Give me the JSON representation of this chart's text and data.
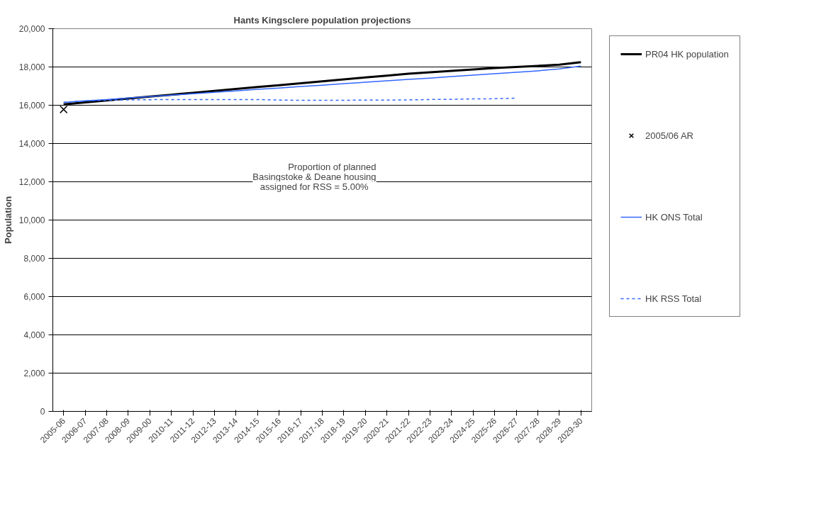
{
  "chart_data": {
    "type": "line",
    "title": "Hants Kingsclere population projections",
    "ylabel": "Population",
    "categories": [
      "2005-06",
      "2006-07",
      "2007-08",
      "2008-09",
      "2009-00",
      "2010-11",
      "2011-12",
      "2012-13",
      "2013-14",
      "2014-15",
      "2015-16",
      "2016-17",
      "2017-18",
      "2018-19",
      "2019-20",
      "2020-21",
      "2021-22",
      "2022-23",
      "2023-24",
      "2024-25",
      "2025-26",
      "2026-27",
      "2027-28",
      "2028-29",
      "2029-30"
    ],
    "series": [
      {
        "name": "PR04 HK population",
        "color": "#000000",
        "line_style": "solid",
        "values": [
          16050,
          16150,
          16250,
          16350,
          16450,
          16550,
          16650,
          16750,
          16850,
          16950,
          17050,
          17150,
          17250,
          17350,
          17450,
          17550,
          17650,
          17720,
          17800,
          17870,
          17940,
          18000,
          18060,
          18120,
          18250
        ]
      },
      {
        "name": "2005/06 AR",
        "type": "scatter",
        "marker": "cross",
        "color": "#000000",
        "values": [
          15780,
          null,
          null,
          null,
          null,
          null,
          null,
          null,
          null,
          null,
          null,
          null,
          null,
          null,
          null,
          null,
          null,
          null,
          null,
          null,
          null,
          null,
          null,
          null,
          null
        ]
      },
      {
        "name": "HK ONS Total",
        "color": "#3366ff",
        "line_style": "solid",
        "values": [
          16150,
          16230,
          16300,
          16380,
          16450,
          16530,
          16600,
          16680,
          16750,
          16830,
          16900,
          16980,
          17050,
          17130,
          17200,
          17280,
          17350,
          17420,
          17500,
          17570,
          17650,
          17720,
          17800,
          17900,
          18050
        ]
      },
      {
        "name": "HK RSS Total",
        "color": "#3366ff",
        "line_style": "dashed",
        "values": [
          16150,
          16230,
          16260,
          16280,
          16290,
          16300,
          16300,
          16300,
          16300,
          16300,
          16270,
          16260,
          16260,
          16260,
          16270,
          16270,
          16280,
          16300,
          16310,
          16330,
          16340,
          16370,
          null,
          null,
          null
        ]
      }
    ],
    "ylim": [
      0,
      20000
    ],
    "yticks": [
      {
        "value": 0,
        "label": "0"
      },
      {
        "value": 2000,
        "label": "2,000"
      },
      {
        "value": 4000,
        "label": "4,000"
      },
      {
        "value": 6000,
        "label": "6,000"
      },
      {
        "value": 8000,
        "label": "8,000"
      },
      {
        "value": 10000,
        "label": "10,000"
      },
      {
        "value": 12000,
        "label": "12,000"
      },
      {
        "value": 14000,
        "label": "14,000"
      },
      {
        "value": 16000,
        "label": "16,000"
      },
      {
        "value": 18000,
        "label": "18,000"
      },
      {
        "value": 20000,
        "label": "20,000"
      }
    ],
    "grid": "y",
    "legend": "right",
    "annotations": [
      "Proportion of planned\nBasingstoke & Deane housing\nassigned for RSS =    5.00%"
    ]
  }
}
